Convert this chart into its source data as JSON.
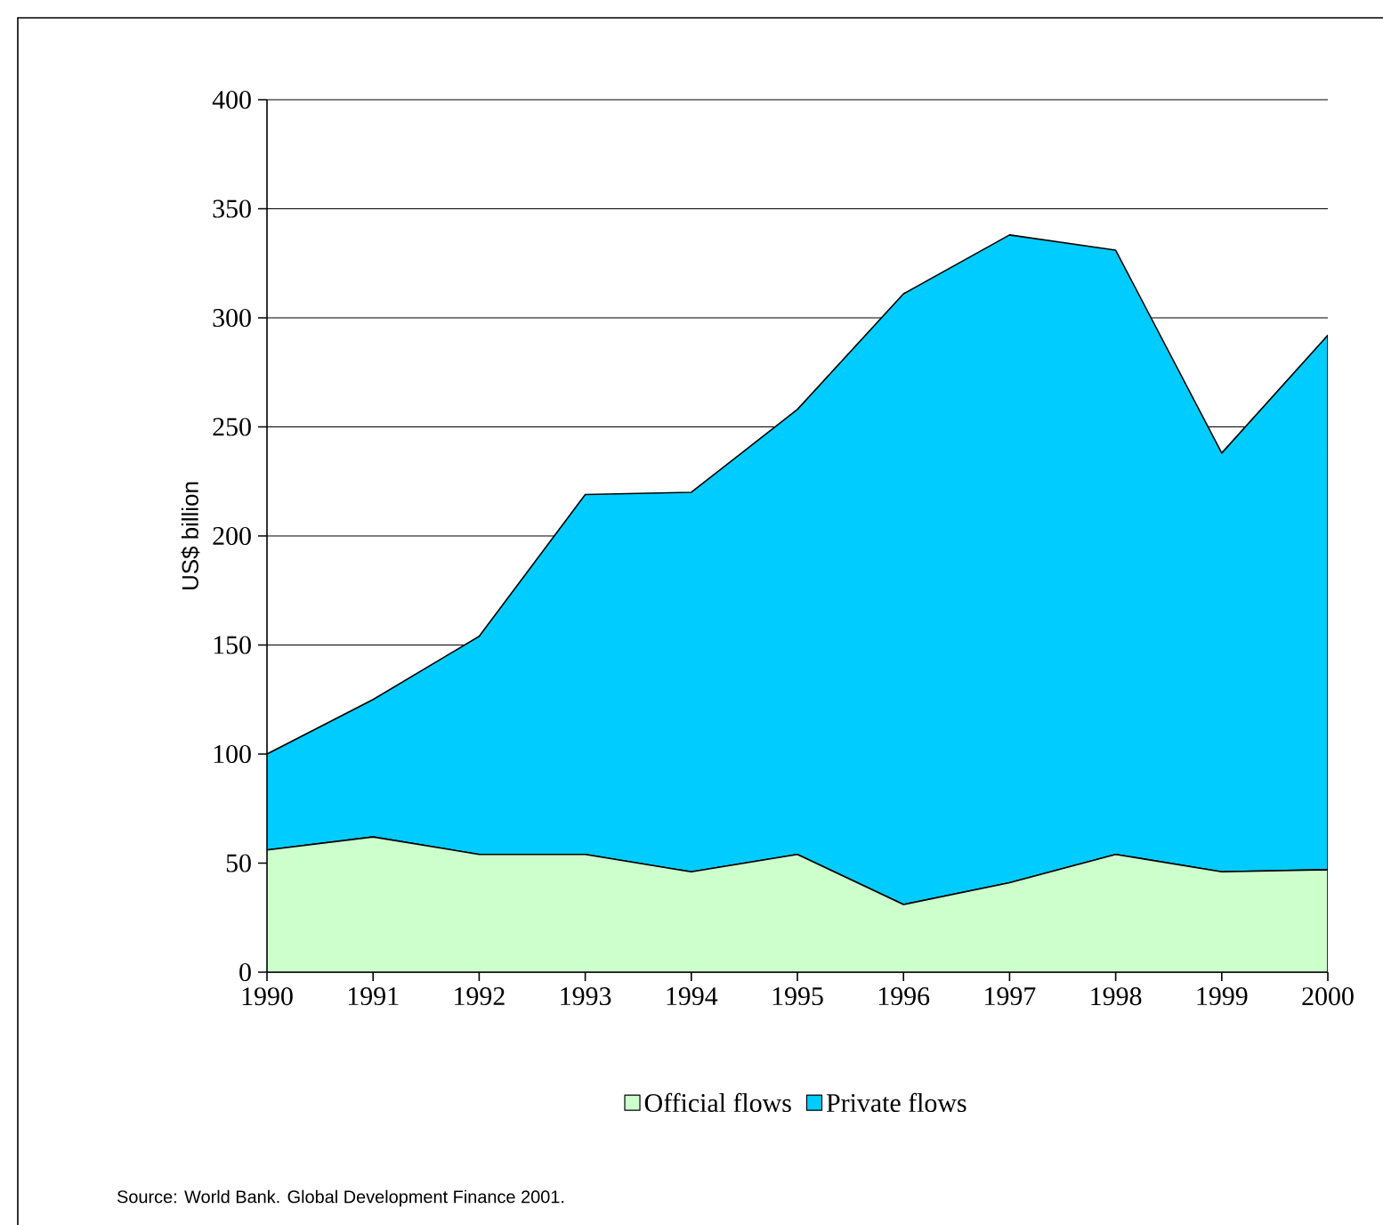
{
  "chart_data": {
    "type": "area",
    "ylabel": "US$ billion",
    "annotations": [
      "Source: World Bank. Global Development Finance 2001."
    ],
    "x": [
      1990,
      1991,
      1992,
      1993,
      1994,
      1995,
      1996,
      1997,
      1998,
      1999,
      2000
    ],
    "series": [
      {
        "name": "Official flows",
        "color": "#ccffcc",
        "values": [
          56,
          62,
          54,
          54,
          46,
          54,
          31,
          41,
          54,
          46,
          47
        ]
      },
      {
        "name": "Private flows",
        "color": "#00ccff",
        "values": [
          44,
          63,
          100,
          165,
          174,
          204,
          280,
          297,
          277,
          192,
          245
        ]
      }
    ],
    "stacked": true,
    "xlim": [
      1990,
      2000
    ],
    "xticks": [
      1990,
      1991,
      1992,
      1993,
      1994,
      1995,
      1996,
      1997,
      1998,
      1999,
      2000
    ],
    "ylim": [
      0,
      400
    ],
    "yticks": [
      0,
      50,
      100,
      150,
      200,
      250,
      300,
      350,
      400
    ],
    "grid": "y",
    "legend": "bottom"
  }
}
